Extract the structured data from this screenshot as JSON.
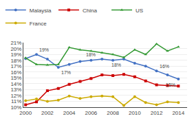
{
  "chart_data": {
    "type": "line",
    "x": [
      2000,
      2001,
      2002,
      2003,
      2004,
      2005,
      2006,
      2007,
      2008,
      2009,
      2010,
      2011,
      2012,
      2013,
      2014
    ],
    "series": [
      {
        "name": "Malaysia",
        "color": "#4472C4",
        "marker": "circle",
        "values": [
          18.3,
          19.0,
          18.2,
          16.8,
          17.3,
          17.8,
          18.0,
          18.2,
          18.0,
          18.2,
          17.5,
          17.0,
          16.2,
          15.5,
          14.8
        ]
      },
      {
        "name": "China",
        "color": "#CC0000",
        "marker": "square",
        "values": [
          10.4,
          10.9,
          12.8,
          13.2,
          13.9,
          14.4,
          14.9,
          15.5,
          15.4,
          15.6,
          15.2,
          14.5,
          13.8,
          13.7,
          13.6
        ]
      },
      {
        "name": "US",
        "color": "#339933",
        "marker": "triangle-up",
        "values": [
          18.4,
          17.3,
          17.2,
          17.3,
          20.2,
          19.8,
          19.6,
          19.3,
          19.0,
          18.5,
          19.8,
          19.0,
          20.8,
          19.6,
          20.3
        ]
      },
      {
        "name": "France",
        "color": "#CCAA00",
        "marker": "circle",
        "values": [
          11.1,
          11.4,
          11.0,
          11.2,
          11.9,
          11.5,
          11.8,
          11.9,
          11.8,
          10.3,
          11.8,
          10.8,
          10.4,
          10.9,
          10.8
        ]
      }
    ],
    "annotations": [
      {
        "text": "19%",
        "x": 2001,
        "y": 19.0
      },
      {
        "text": "17%",
        "x": 2003,
        "y": 16.8
      },
      {
        "text": "18%",
        "x": 2006,
        "y": 18.0
      },
      {
        "text": "18%",
        "x": 2009,
        "y": 18.2
      },
      {
        "text": "16%",
        "x": 2012,
        "y": 16.2
      },
      {
        "text": "15%",
        "x": 2014,
        "y": 14.8
      }
    ],
    "xlim": [
      1999.8,
      2014.8
    ],
    "xticks": [
      2000,
      2002,
      2004,
      2006,
      2008,
      2010,
      2012,
      2014
    ],
    "ylim": [
      10,
      21
    ],
    "yticks": [
      {
        "value": 10,
        "label": "10%"
      },
      {
        "value": 11,
        "label": "11%"
      },
      {
        "value": 12,
        "label": "12%"
      },
      {
        "value": 13,
        "label": "13%"
      },
      {
        "value": 14,
        "label": "14%"
      },
      {
        "value": 15,
        "label": "15%"
      },
      {
        "value": 16,
        "label": "16%"
      },
      {
        "value": 17,
        "label": "17%"
      },
      {
        "value": 18,
        "label": "18%"
      },
      {
        "value": 19,
        "label": "19%"
      },
      {
        "value": 20,
        "label": "20%"
      },
      {
        "value": 21,
        "label": "21%"
      }
    ],
    "grid": "y",
    "legend": "top"
  }
}
